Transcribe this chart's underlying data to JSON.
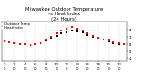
{
  "title": "Milwaukee Outdoor Temperature\nvs Heat Index\n(24 Hours)",
  "title_color": "#000000",
  "title_orange": "#ff8800",
  "title_fontsize": 3.8,
  "background_color": "#ffffff",
  "temp_color": "#000000",
  "heat_color": "#ff0000",
  "x_hours": [
    0,
    1,
    2,
    3,
    4,
    5,
    6,
    7,
    8,
    9,
    10,
    11,
    12,
    13,
    14,
    15,
    16,
    17,
    18,
    19,
    20,
    21,
    22,
    23
  ],
  "temp_vals": [
    65,
    64,
    63,
    62,
    61,
    60,
    61,
    63,
    66,
    69,
    73,
    76,
    78,
    80,
    79,
    77,
    74,
    71,
    69,
    67,
    65,
    63,
    62,
    61
  ],
  "heat_vals": [
    65,
    64,
    63,
    62,
    61,
    60,
    61,
    63,
    67,
    71,
    76,
    80,
    83,
    85,
    83,
    80,
    76,
    72,
    70,
    68,
    66,
    64,
    63,
    62
  ],
  "ylim": [
    38,
    92
  ],
  "ytick_vals": [
    41,
    51,
    61,
    71,
    81
  ],
  "tick_fontsize": 2.8,
  "grid_color": "#aaaaaa",
  "legend_labels": [
    "Outdoor Temp",
    "Heat Index"
  ],
  "legend_fontsize": 2.8,
  "marker_size": 1.2,
  "xtick_labels_row1": [
    "0",
    "2",
    "4",
    "6",
    "8",
    "10",
    "12",
    "14",
    "16",
    "18",
    "20",
    "22"
  ],
  "xtick_labels_row2": [
    "0",
    "0",
    "0",
    "0",
    "0",
    "0",
    "0",
    "0",
    "0",
    "0",
    "0",
    "0"
  ]
}
